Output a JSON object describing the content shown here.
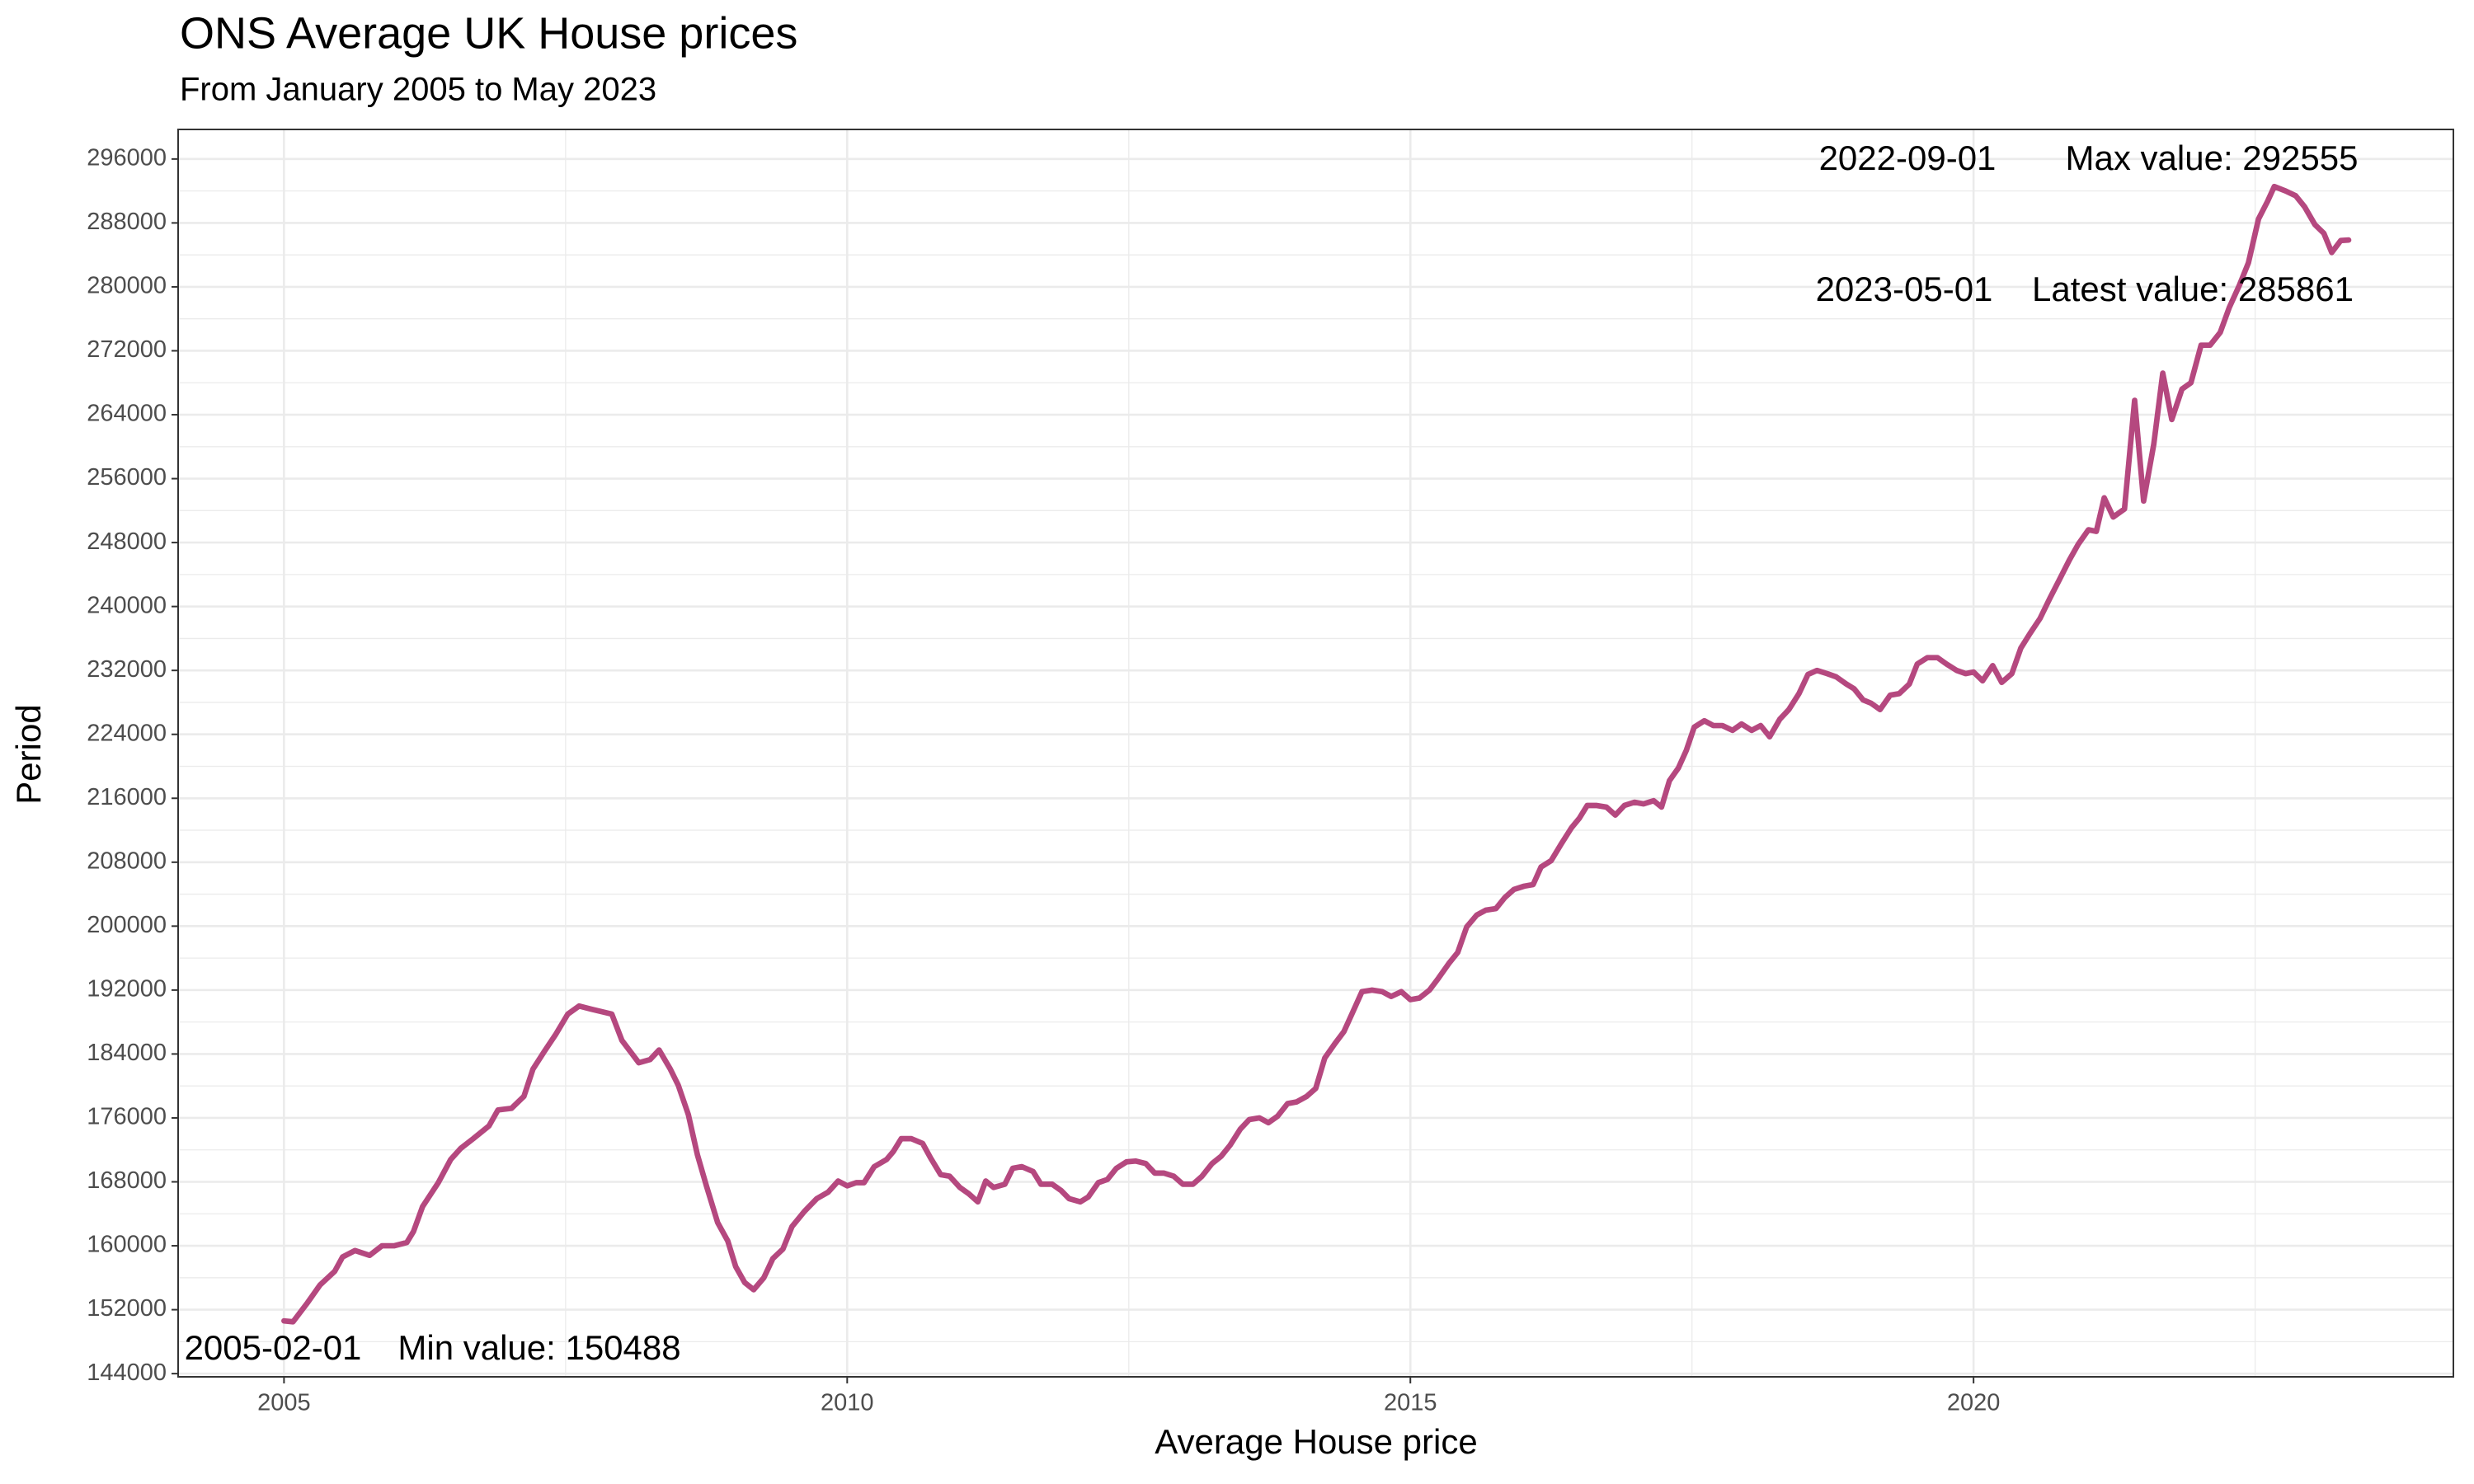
{
  "chart_data": {
    "type": "line",
    "title": "ONS Average UK House prices",
    "subtitle": "From January 2005 to May 2023",
    "x_label": "Average House price",
    "y_label": "Period",
    "annotations": [
      "2022-09-01",
      "Max value: 292555",
      "2023-05-01",
      "Latest value: 285861",
      "2005-02-01",
      "Min value: 150488"
    ],
    "color": "#b5487f",
    "grid": true,
    "xlim": [
      2004.06,
      2024.26
    ],
    "xticks": [
      2005,
      2010,
      2015,
      2020
    ],
    "ylim": [
      143600,
      299700
    ],
    "yticks": [
      144000,
      152000,
      160000,
      168000,
      176000,
      184000,
      192000,
      200000,
      208000,
      216000,
      224000,
      232000,
      240000,
      248000,
      256000,
      264000,
      272000,
      280000,
      288000,
      296000
    ],
    "x": [
      2005.0,
      2005.08,
      2005.21,
      2005.32,
      2005.45,
      2005.52,
      2005.63,
      2005.76,
      2005.87,
      2005.98,
      2006.09,
      2006.15,
      2006.23,
      2006.37,
      2006.48,
      2006.57,
      2006.68,
      2006.82,
      2006.9,
      2007.02,
      2007.13,
      2007.21,
      2007.31,
      2007.41,
      2007.52,
      2007.62,
      2007.73,
      2007.91,
      2008.0,
      2008.15,
      2008.25,
      2008.33,
      2008.43,
      2008.5,
      2008.59,
      2008.67,
      2008.75,
      2008.85,
      2008.94,
      2009.01,
      2009.09,
      2009.17,
      2009.26,
      2009.34,
      2009.43,
      2009.51,
      2009.62,
      2009.73,
      2009.83,
      2009.92,
      2010.0,
      2010.08,
      2010.15,
      2010.24,
      2010.35,
      2010.41,
      2010.48,
      2010.57,
      2010.67,
      2010.74,
      2010.83,
      2010.91,
      2011.0,
      2011.08,
      2011.16,
      2011.23,
      2011.3,
      2011.4,
      2011.47,
      2011.55,
      2011.65,
      2011.72,
      2011.82,
      2011.9,
      2011.97,
      2012.07,
      2012.14,
      2012.23,
      2012.31,
      2012.39,
      2012.48,
      2012.56,
      2012.65,
      2012.73,
      2012.81,
      2012.9,
      2012.98,
      2013.07,
      2013.15,
      2013.24,
      2013.32,
      2013.4,
      2013.49,
      2013.57,
      2013.66,
      2013.74,
      2013.82,
      2013.91,
      2013.99,
      2014.08,
      2014.16,
      2014.24,
      2014.33,
      2014.41,
      2014.5,
      2014.57,
      2014.66,
      2014.75,
      2014.83,
      2014.92,
      2015.0,
      2015.08,
      2015.17,
      2015.25,
      2015.34,
      2015.42,
      2015.5,
      2015.59,
      2015.67,
      2015.76,
      2015.84,
      2015.92,
      2016.01,
      2016.09,
      2016.16,
      2016.25,
      2016.34,
      2016.43,
      2016.5,
      2016.57,
      2016.65,
      2016.74,
      2016.82,
      2016.9,
      2016.99,
      2017.07,
      2017.16,
      2017.23,
      2017.3,
      2017.38,
      2017.45,
      2017.52,
      2017.61,
      2017.69,
      2017.77,
      2017.86,
      2017.94,
      2018.03,
      2018.11,
      2018.19,
      2018.28,
      2018.36,
      2018.45,
      2018.53,
      2018.61,
      2018.7,
      2018.78,
      2018.87,
      2018.94,
      2019.02,
      2019.09,
      2019.17,
      2019.26,
      2019.34,
      2019.43,
      2019.5,
      2019.59,
      2019.68,
      2019.76,
      2019.85,
      2019.93,
      2020.0,
      2020.08,
      2020.17,
      2020.25,
      2020.34,
      2020.42,
      2020.5,
      2020.59,
      2020.68,
      2020.76,
      2020.85,
      2020.93,
      2021.02,
      2021.09,
      2021.16,
      2021.24,
      2021.34,
      2021.43,
      2021.51,
      2021.6,
      2021.68,
      2021.76,
      2021.85,
      2021.93,
      2022.02,
      2022.1,
      2022.19,
      2022.27,
      2022.36,
      2022.44,
      2022.53,
      2022.61,
      2022.67,
      2022.77,
      2022.86,
      2022.94,
      2023.03,
      2023.11,
      2023.18,
      2023.26,
      2023.33
    ],
    "values": [
      150600,
      150488,
      152900,
      155100,
      156800,
      158600,
      159400,
      158800,
      160000,
      160000,
      160400,
      161800,
      164900,
      167900,
      170800,
      172200,
      173400,
      175000,
      177000,
      177200,
      178700,
      182100,
      184300,
      186400,
      189000,
      190000,
      189600,
      189000,
      185700,
      182900,
      183300,
      184500,
      182100,
      180100,
      176400,
      171400,
      167500,
      162900,
      160600,
      157400,
      155400,
      154500,
      156000,
      158400,
      159600,
      162400,
      164300,
      165900,
      166700,
      168100,
      167500,
      167900,
      167900,
      169900,
      170800,
      171800,
      173400,
      173400,
      172800,
      171000,
      168900,
      168700,
      167300,
      166500,
      165500,
      168100,
      167300,
      167700,
      169700,
      169900,
      169300,
      167700,
      167700,
      166900,
      165900,
      165500,
      166100,
      167900,
      168300,
      169700,
      170500,
      170600,
      170300,
      169100,
      169100,
      168700,
      167700,
      167700,
      168700,
      170300,
      171200,
      172600,
      174600,
      175800,
      176000,
      175400,
      176200,
      177800,
      178000,
      178700,
      179700,
      183500,
      185300,
      186800,
      189600,
      191800,
      192000,
      191800,
      191200,
      191800,
      190800,
      191000,
      192000,
      193500,
      195300,
      196700,
      199900,
      201400,
      202000,
      202200,
      203600,
      204600,
      205000,
      205200,
      207400,
      208200,
      210300,
      212300,
      213500,
      215100,
      215100,
      214900,
      213900,
      215100,
      215500,
      215300,
      215700,
      214900,
      218200,
      219800,
      222000,
      224900,
      225700,
      225100,
      225100,
      224500,
      225300,
      224500,
      225100,
      223700,
      225900,
      227100,
      229100,
      231500,
      232000,
      231600,
      231200,
      230300,
      229700,
      228300,
      227900,
      227100,
      228900,
      229100,
      230300,
      232800,
      233600,
      233600,
      232800,
      232000,
      231600,
      231800,
      230700,
      232600,
      230500,
      231600,
      234800,
      236600,
      238500,
      241100,
      243300,
      245800,
      247800,
      249600,
      249400,
      253600,
      251200,
      252200,
      265800,
      253200,
      260300,
      269200,
      263400,
      267200,
      268000,
      272700,
      272700,
      274300,
      277400,
      280200,
      283000,
      288500,
      290700,
      292555,
      292000,
      291400,
      290000,
      287800,
      286700,
      284300,
      285800,
      285861
    ]
  }
}
